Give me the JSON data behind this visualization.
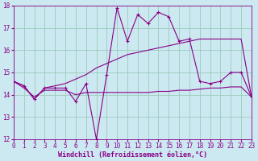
{
  "xlabel": "Windchill (Refroidissement éolien,°C)",
  "bg_color": "#cce8f0",
  "line_color": "#880088",
  "grid_color": "#99ccbb",
  "x": [
    0,
    1,
    2,
    3,
    4,
    5,
    6,
    7,
    8,
    9,
    10,
    11,
    12,
    13,
    14,
    15,
    16,
    17,
    18,
    19,
    20,
    21,
    22,
    23
  ],
  "line1": [
    14.6,
    14.4,
    13.8,
    14.3,
    14.3,
    14.3,
    13.7,
    14.5,
    12.0,
    14.9,
    17.9,
    16.4,
    17.6,
    17.2,
    17.7,
    17.5,
    16.4,
    16.5,
    14.6,
    14.5,
    14.6,
    15.0,
    15.0,
    13.9
  ],
  "line2": [
    14.6,
    14.3,
    13.9,
    14.2,
    14.2,
    14.2,
    14.0,
    14.1,
    14.1,
    14.1,
    14.1,
    14.1,
    14.1,
    14.1,
    14.15,
    14.15,
    14.2,
    14.2,
    14.25,
    14.3,
    14.3,
    14.35,
    14.35,
    13.9
  ],
  "line3": [
    14.6,
    14.4,
    13.8,
    14.3,
    14.4,
    14.5,
    14.7,
    14.9,
    15.2,
    15.4,
    15.6,
    15.8,
    15.9,
    16.0,
    16.1,
    16.2,
    16.3,
    16.4,
    16.5,
    16.5,
    16.5,
    16.5,
    16.5,
    13.9
  ],
  "ylim": [
    12,
    18
  ],
  "xlim": [
    0,
    23
  ],
  "yticks": [
    12,
    13,
    14,
    15,
    16,
    17,
    18
  ],
  "xticks": [
    0,
    1,
    2,
    3,
    4,
    5,
    6,
    7,
    8,
    9,
    10,
    11,
    12,
    13,
    14,
    15,
    16,
    17,
    18,
    19,
    20,
    21,
    22,
    23
  ],
  "xlabel_fontsize": 6,
  "tick_fontsize": 5.5
}
